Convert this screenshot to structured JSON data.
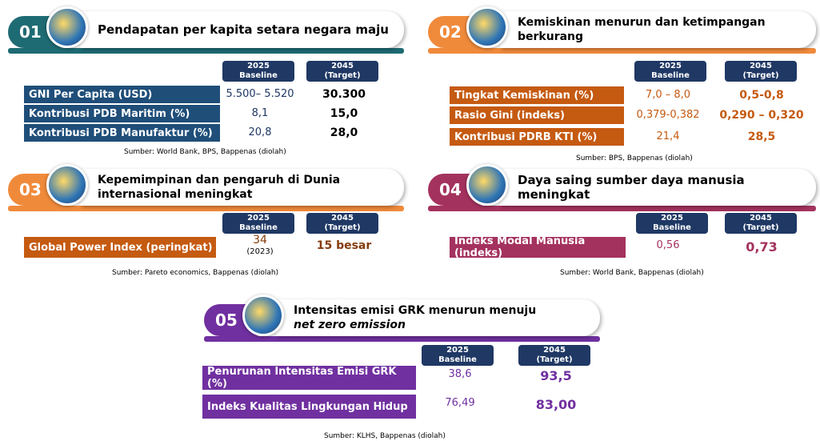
{
  "panels": [
    {
      "number": "01",
      "title_lines": [
        "Pendapatan per kapita setara negara maju"
      ],
      "headers": [
        {
          "year": "2025",
          "sub": "Baseline"
        },
        {
          "year": "2045",
          "sub": "(Target)"
        }
      ],
      "rows": [
        {
          "label": "GNI Per Capita (USD)",
          "baseline": "5.500– 5.520",
          "target": "30.300"
        },
        {
          "label": "Kontribusi PDB Maritim (%)",
          "baseline": "8,1",
          "target": "15,0"
        },
        {
          "label": "Kontribusi PDB Manufaktur (%)",
          "baseline": "20,8",
          "target": "28,0"
        }
      ],
      "source": "Sumber: World Bank, BPS, Bappenas (diolah)"
    },
    {
      "number": "02",
      "title_lines": [
        "Kemiskinan menurun dan ketimpangan",
        "berkurang"
      ],
      "headers": [
        {
          "year": "2025",
          "sub": "Baseline"
        },
        {
          "year": "2045",
          "sub": "(Target)"
        }
      ],
      "rows": [
        {
          "label": "Tingkat Kemiskinan (%)",
          "baseline": "7,0 – 8,0",
          "target": "0,5-0,8"
        },
        {
          "label": "Rasio Gini (indeks)",
          "baseline": "0,379-0,382",
          "target": "0,290 – 0,320"
        },
        {
          "label": "Kontribusi PDRB KTI (%)",
          "baseline": "21,4",
          "target": "28,5"
        }
      ],
      "source": "Sumber: BPS, Bappenas (diolah)"
    },
    {
      "number": "03",
      "title_lines": [
        "Kepemimpinan dan pengaruh di Dunia",
        "internasional meningkat"
      ],
      "headers": [
        {
          "year": "2025",
          "sub": "Baseline"
        },
        {
          "year": "2045",
          "sub": "(Target)"
        }
      ],
      "rows": [
        {
          "label": "Global Power Index (peringkat)",
          "baseline": "34",
          "baseline_note": "(2023)",
          "target": "15 besar"
        }
      ],
      "source": "Sumber: Pareto economics,  Bappenas (diolah)"
    },
    {
      "number": "04",
      "title_lines": [
        "Daya saing sumber daya manusia meningkat"
      ],
      "headers": [
        {
          "year": "2025",
          "sub": "Baseline"
        },
        {
          "year": "2045",
          "sub": "(Target)"
        }
      ],
      "rows": [
        {
          "label": "Indeks Modal Manusia (indeks)",
          "baseline": "0,56",
          "target": "0,73"
        }
      ],
      "source": "Sumber: World Bank, Bappenas (diolah)"
    },
    {
      "number": "05",
      "title_lines": [
        "Intensitas emisi GRK menurun menuju",
        "net zero emission"
      ],
      "headers": [
        {
          "year": "2025",
          "sub": "Baseline"
        },
        {
          "year": "2045",
          "sub": "(Target)"
        }
      ],
      "rows": [
        {
          "label": "Penurunan Intensitas Emisi GRK (%)",
          "baseline": "38,6",
          "target": "93,5"
        },
        {
          "label": "Indeks Kualitas Lingkungan Hidup",
          "baseline": "76,49",
          "target": "83,00"
        }
      ],
      "source": "Sumber: KLHS, Bappenas (diolah)"
    }
  ]
}
